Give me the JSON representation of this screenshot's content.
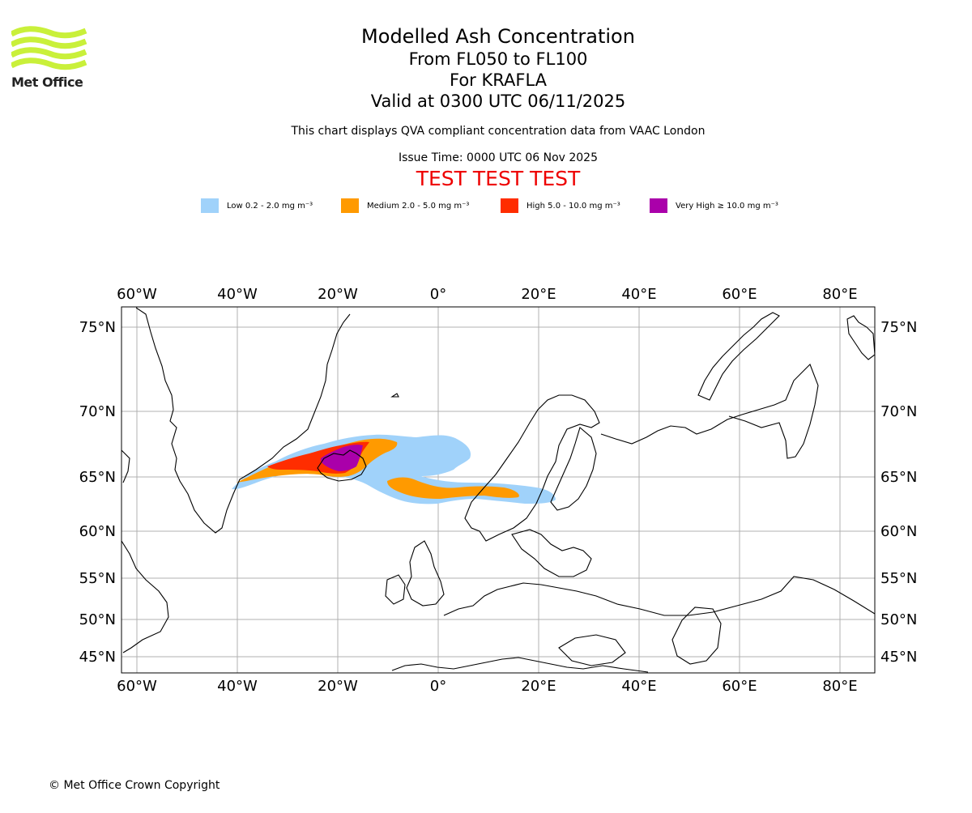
{
  "header": {
    "title": "Modelled Ash Concentration",
    "levels": "From FL050 to FL100",
    "volcano": "For KRAFLA",
    "valid": "Valid at 0300 UTC 06/11/2025",
    "note": "This chart displays QVA compliant concentration data from VAAC London",
    "issue_time": "Issue Time: 0000 UTC 06 Nov 2025",
    "test_banner": "TEST TEST TEST"
  },
  "logo": {
    "text": "Met Office",
    "color": "#c9f03a"
  },
  "legend": [
    {
      "label": "Low 0.2 - 2.0 mg m⁻³",
      "color": "#a0d2fa"
    },
    {
      "label": "Medium 2.0 - 5.0 mg m⁻³",
      "color": "#ff9a00"
    },
    {
      "label": "High 5.0 - 10.0 mg m⁻³",
      "color": "#ff2d00"
    },
    {
      "label": "Very High ≥ 10.0 mg m⁻³",
      "color": "#aa00aa"
    }
  ],
  "map": {
    "lon_labels": [
      "60°W",
      "40°W",
      "20°W",
      "0°",
      "20°E",
      "40°E",
      "60°E",
      "80°E"
    ],
    "lat_labels": [
      "75°N",
      "70°N",
      "65°N",
      "60°N",
      "55°N",
      "50°N",
      "45°N"
    ],
    "grid": true
  },
  "footer": {
    "copyright": "© Met Office Crown Copyright"
  }
}
